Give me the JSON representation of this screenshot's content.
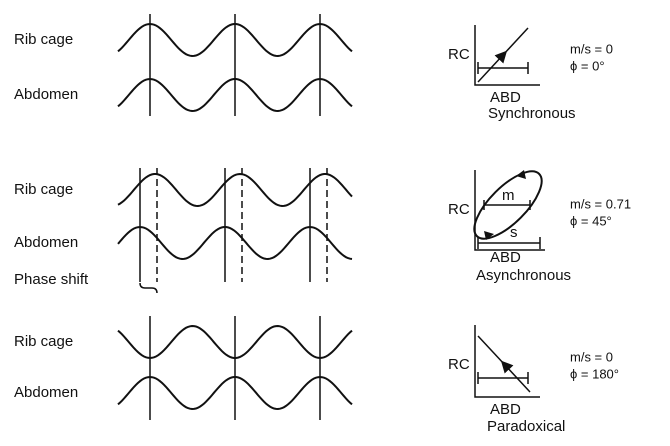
{
  "panels": [
    {
      "waves": [
        "Rib cage",
        "Abdomen"
      ],
      "y_label": "RC",
      "x_label": "ABD",
      "caption": "Synchronous",
      "ratio": "m/s = 0",
      "phase": "ϕ = 0°"
    },
    {
      "waves": [
        "Rib cage",
        "Abdomen"
      ],
      "shift_label": "Phase shift",
      "y_label": "RC",
      "x_label": "ABD",
      "m_label": "m",
      "s_label": "s",
      "caption": "Asynchronous",
      "ratio": "m/s = 0.71",
      "phase": "ϕ = 45°"
    },
    {
      "waves": [
        "Rib cage",
        "Abdomen"
      ],
      "y_label": "RC",
      "x_label": "ABD",
      "caption": "Paradoxical",
      "ratio": "m/s = 0",
      "phase": "ϕ = 180°"
    }
  ]
}
